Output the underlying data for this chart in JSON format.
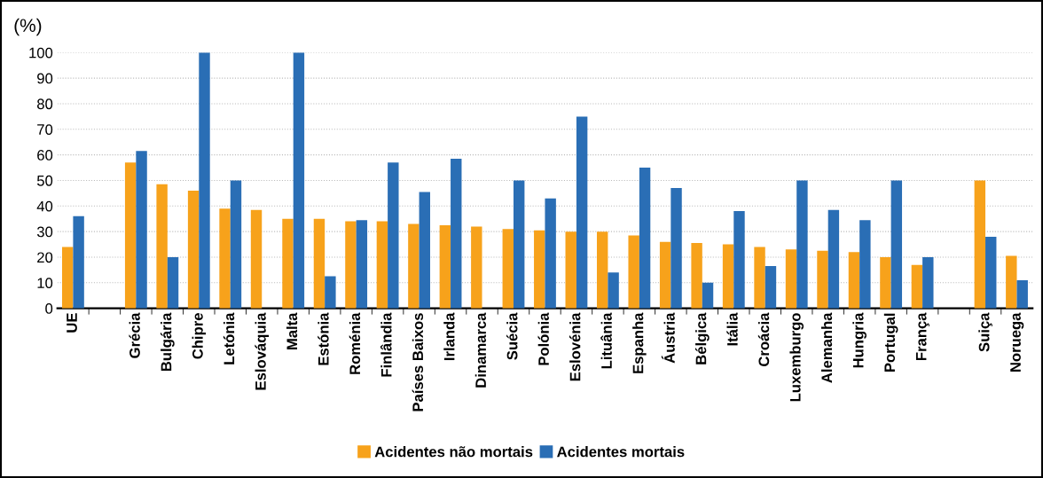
{
  "chart_data": {
    "type": "bar",
    "ylabel": "(%)",
    "categories": [
      "UE",
      null,
      "Grécia",
      "Bulgária",
      "Chipre",
      "Letónia",
      "Eslováquia",
      "Malta",
      "Estónia",
      "Roménia",
      "Finlândia",
      "Países Baixos",
      "Irlanda",
      "Dinamarca",
      "Suécia",
      "Polónia",
      "Eslovénia",
      "Lituânia",
      "Espanha",
      "Áustria",
      "Bélgica",
      "Itália",
      "Croácia",
      "Luxemburgo",
      "Alemanha",
      "Hungria",
      "Portugal",
      "França",
      null,
      "Suiça",
      "Noruega"
    ],
    "series": [
      {
        "name": "Acidentes não mortais",
        "color": "#f7a21b",
        "values": [
          24,
          null,
          57,
          48.5,
          46,
          39,
          38.5,
          35,
          35,
          34,
          34,
          33,
          32.5,
          32,
          31,
          30.5,
          30,
          30,
          28.5,
          26,
          25.5,
          25,
          24,
          23,
          22.5,
          22,
          20,
          17,
          null,
          50,
          20.5
        ]
      },
      {
        "name": "Acidentes mortais",
        "color": "#2a6eb5",
        "values": [
          36,
          null,
          61.5,
          20,
          100,
          50,
          null,
          100,
          12.5,
          34.5,
          57,
          45.5,
          58.5,
          null,
          50,
          43,
          75,
          14,
          55,
          47,
          10,
          38,
          16.5,
          50,
          38.5,
          34.5,
          50,
          20,
          null,
          28,
          11
        ]
      }
    ],
    "ylim": [
      0,
      100
    ],
    "yticks": [
      0,
      10,
      20,
      30,
      40,
      50,
      60,
      70,
      80,
      90,
      100
    ],
    "grid": "y",
    "legend": "bottom"
  }
}
